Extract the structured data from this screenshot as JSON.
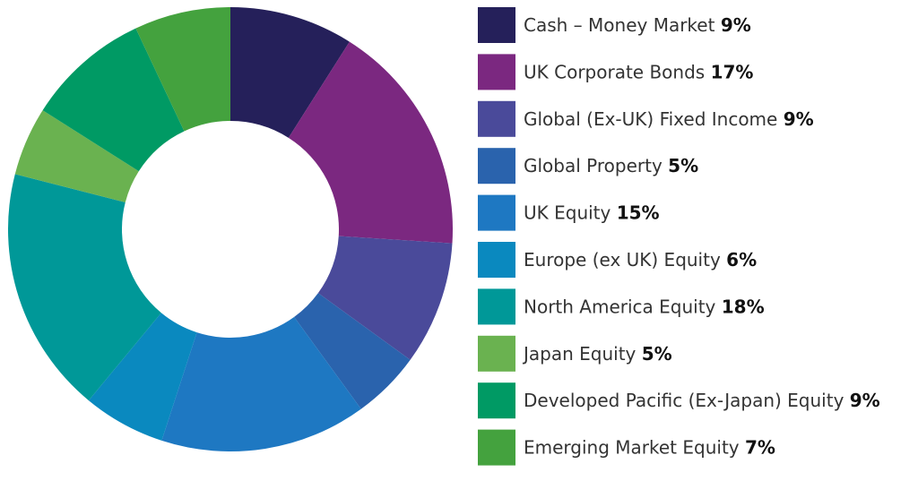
{
  "chart_data": {
    "type": "donut",
    "categories": [
      "Cash – Money Market",
      "UK Corporate Bonds",
      "Global (Ex-UK) Fixed Income",
      "Global Property",
      "UK Equity",
      "Europe (ex UK) Equity",
      "North America Equity",
      "Japan Equity",
      "Developed Pacific (Ex-Japan) Equity",
      "Emerging Market Equity"
    ],
    "values": [
      9,
      17,
      9,
      5,
      15,
      6,
      18,
      5,
      9,
      7
    ],
    "value_labels": [
      "9%",
      "17%",
      "9%",
      "5%",
      "15%",
      "6%",
      "18%",
      "5%",
      "9%",
      "7%"
    ],
    "colors": [
      "#25205a",
      "#7b2880",
      "#4a4a9a",
      "#2a63ad",
      "#1e78c2",
      "#0a89bf",
      "#009898",
      "#6ab250",
      "#009a64",
      "#44a23e"
    ]
  }
}
